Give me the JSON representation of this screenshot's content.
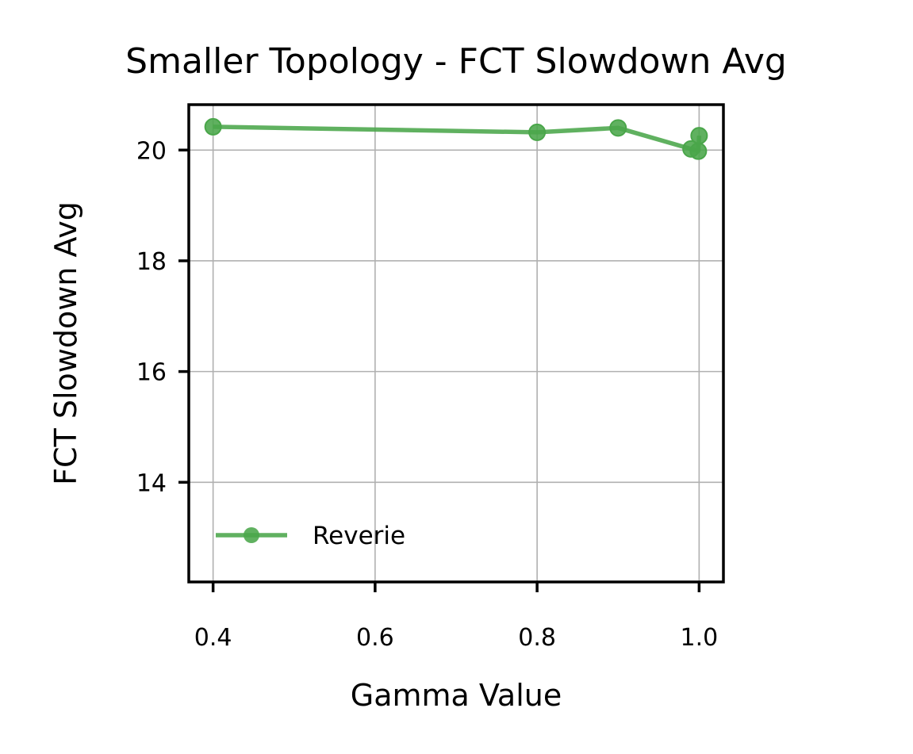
{
  "chart_data": {
    "type": "line",
    "title": "Smaller Topology - FCT Slowdown Avg",
    "xlabel": "Gamma Value",
    "ylabel": "FCT Slowdown Avg",
    "xlim": [
      0.37,
      1.03
    ],
    "ylim": [
      12.2,
      20.82
    ],
    "xticks": [
      0.4,
      0.6,
      0.8,
      1.0
    ],
    "xtick_labels": [
      "0.4",
      "0.6",
      "0.8",
      "1.0"
    ],
    "yticks": [
      14,
      16,
      18,
      20
    ],
    "ytick_labels": [
      "14",
      "16",
      "18",
      "20"
    ],
    "grid": true,
    "legend_position": "lower-left",
    "series": [
      {
        "name": "Reverie",
        "color": "#4aa64a",
        "marker": "circle",
        "x": [
          0.4,
          0.8,
          0.9,
          0.99,
          0.999,
          1.0
        ],
        "y": [
          20.42,
          20.32,
          20.4,
          20.02,
          19.98,
          20.26
        ]
      }
    ]
  }
}
